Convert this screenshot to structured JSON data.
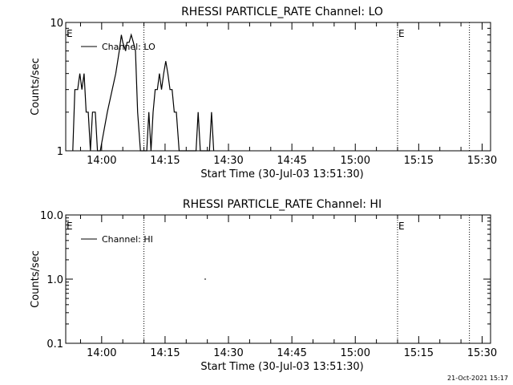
{
  "footer": {
    "date_stamp": "21-Oct-2021 15:17"
  },
  "chart_data": [
    {
      "type": "line",
      "title": "RHESSI PARTICLE_RATE Channel: LO",
      "xlabel": "Start Time (30-Jul-03 13:51:30)",
      "ylabel": "Counts/sec",
      "yscale": "log",
      "ylim": [
        1,
        10
      ],
      "y_tick_labels": [
        "1",
        "10"
      ],
      "x_tick_labels": [
        "14:00",
        "14:15",
        "14:30",
        "14:45",
        "15:00",
        "15:15",
        "15:30"
      ],
      "xlim": [
        "13:51:30",
        "15:32:00"
      ],
      "vertical_dotted_lines": [
        "14:10:00",
        "15:10:00",
        "15:27:00"
      ],
      "markers": [
        {
          "text": "E",
          "at": "13:51:30"
        },
        {
          "text": "E",
          "at": "15:10:00"
        }
      ],
      "legend": {
        "position": "top-left",
        "entries": [
          "Channel: LO"
        ]
      },
      "series": [
        {
          "name": "Channel: LO",
          "x": [
            "13:53:10",
            "13:53:40",
            "13:54:20",
            "13:54:50",
            "13:55:20",
            "13:55:50",
            "13:56:20",
            "13:56:50",
            "13:57:20",
            "13:57:50",
            "13:58:30",
            "13:59:00",
            "13:59:40",
            "14:01:20",
            "14:02:30",
            "14:03:20",
            "14:04:10",
            "14:04:40",
            "14:05:00",
            "14:05:40",
            "14:06:00",
            "14:06:30",
            "14:07:00",
            "14:07:30",
            "14:08:00",
            "14:08:30",
            "14:09:10",
            "14:09:40",
            "14:10:40",
            "14:11:10",
            "14:11:40",
            "14:12:10",
            "14:12:40",
            "14:13:10",
            "14:13:40",
            "14:14:10",
            "14:14:40",
            "14:15:10",
            "14:15:40",
            "14:16:10",
            "14:16:40",
            "14:17:10",
            "14:17:40",
            "14:18:20",
            "14:18:50",
            "14:22:20",
            "14:22:50",
            "14:23:20",
            "14:25:30",
            "14:26:00",
            "14:26:30"
          ],
          "y": [
            1,
            3,
            3,
            4,
            3,
            4,
            2,
            2,
            1,
            2,
            2,
            1,
            1,
            2,
            3,
            4,
            6,
            8,
            7,
            6,
            7,
            7,
            8,
            7,
            6,
            2,
            1,
            1,
            1,
            2,
            1,
            2,
            3,
            3,
            4,
            3,
            4,
            5,
            4,
            3,
            3,
            2,
            2,
            1,
            1,
            1,
            2,
            1,
            1,
            2,
            1
          ]
        }
      ]
    },
    {
      "type": "line",
      "title": "RHESSI PARTICLE_RATE Channel: HI",
      "xlabel": "Start Time (30-Jul-03 13:51:30)",
      "ylabel": "Counts/sec",
      "yscale": "log",
      "ylim": [
        0.1,
        10
      ],
      "y_tick_labels": [
        "0.1",
        "1.0",
        "10.0"
      ],
      "x_tick_labels": [
        "14:00",
        "14:15",
        "14:30",
        "14:45",
        "15:00",
        "15:15",
        "15:30"
      ],
      "xlim": [
        "13:51:30",
        "15:32:00"
      ],
      "vertical_dotted_lines": [
        "14:10:00",
        "15:10:00",
        "15:27:00"
      ],
      "markers": [
        {
          "text": "E",
          "at": "13:51:30"
        },
        {
          "text": "E",
          "at": "15:10:00"
        }
      ],
      "legend": {
        "position": "top-left",
        "entries": [
          "Channel: HI"
        ]
      },
      "series": [
        {
          "name": "Channel: HI",
          "x": [
            "14:24:30"
          ],
          "y": [
            1.0
          ]
        }
      ]
    }
  ]
}
